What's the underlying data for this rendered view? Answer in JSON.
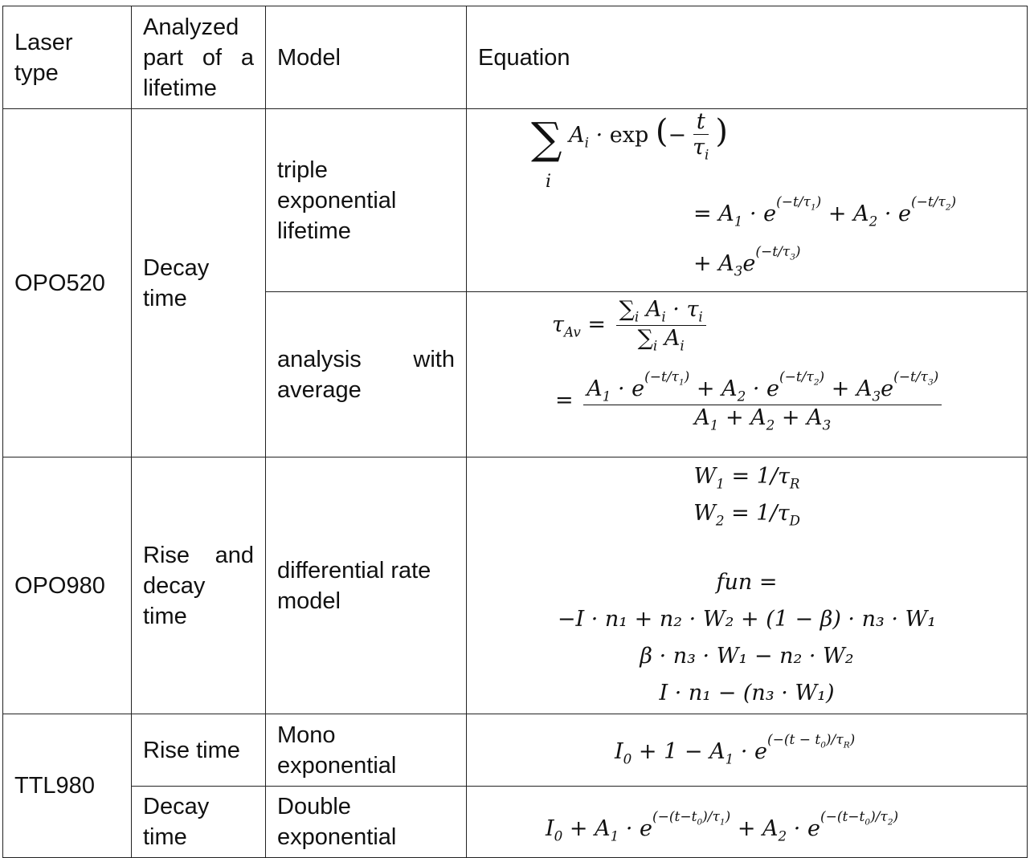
{
  "headers": {
    "laser_type": "Laser type",
    "analyzed_part": "Analyzed part of a lifetime",
    "model": "Model",
    "equation": "Equation"
  },
  "rows": {
    "opo520": {
      "laser": "OPO520",
      "part": "Decay time",
      "model1": "triple exponential lifetime",
      "model2": "analysis with average"
    },
    "opo980": {
      "laser": "OPO980",
      "part": "Rise and decay time",
      "model": "differential rate model"
    },
    "ttl980": {
      "laser": "TTL980",
      "part1": "Rise time",
      "model1": "Mono exponential",
      "part2": "Decay time",
      "model2": "Double exponential"
    }
  },
  "equations": {
    "opo980_lines": [
      "fun =",
      "−I · n₁ + n₂ · W₂ + (1 − β) · n₃ · W₁",
      "β · n₃ · W₁ − n₂ · W₂",
      "I · n₁ − (n₃ · W₁)"
    ]
  }
}
